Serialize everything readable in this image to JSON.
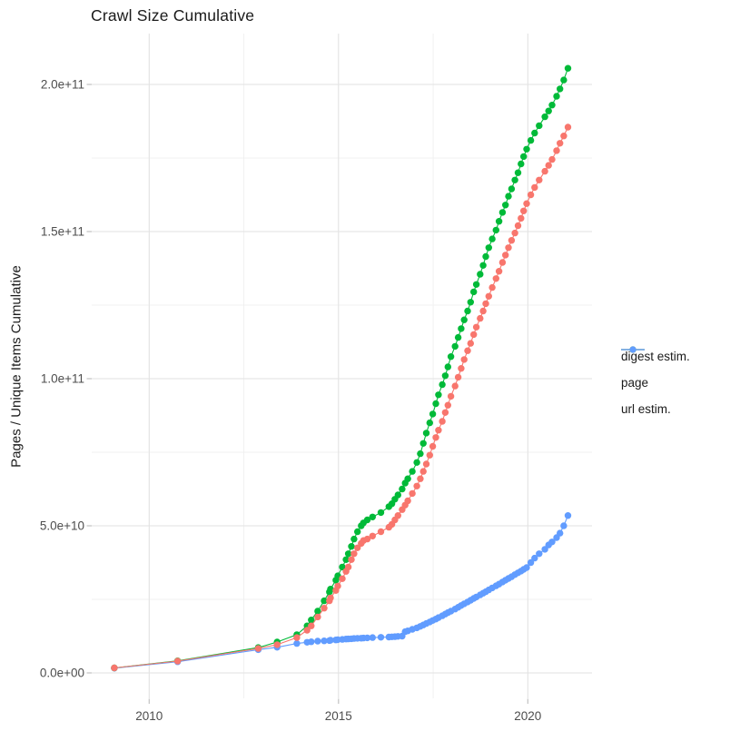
{
  "chart": {
    "title": "Crawl Size Cumulative",
    "ylabel": "Pages / Unique Items Cumulative"
  },
  "chart_data": {
    "type": "scatter",
    "title": "Crawl Size Cumulative",
    "xlabel": "",
    "ylabel": "Pages / Unique Items Cumulative",
    "x_unit": "year (decimal)",
    "y_unit": "count (billions, value * 1e9)",
    "grid": "on",
    "legend_position": "right-center",
    "background": "#ffffff",
    "grid_major_color": "#e2e2e2",
    "grid_minor_color": "#eeeeee",
    "tick_color": "#c2c2c2",
    "axis_text_color": "#4d4d4d",
    "xlim": [
      2008.55,
      2021.7
    ],
    "ylim_e9": [
      0,
      212
    ],
    "x_ticks": {
      "major": [
        2010,
        2015,
        2020
      ],
      "labels": [
        "2010",
        "2015",
        "2020"
      ],
      "minor": [
        2012.5,
        2017.5
      ]
    },
    "y_ticks": {
      "major_e9": [
        0,
        50,
        100,
        150,
        200
      ],
      "labels": [
        "0.0e+00",
        "5.0e+10",
        "1.0e+11",
        "1.5e+11",
        "2.0e+11"
      ],
      "minor_e9": [
        25,
        75,
        125,
        175
      ]
    },
    "x": [
      2009.08,
      2010.75,
      2012.88,
      2013.38,
      2013.9,
      2014.17,
      2014.28,
      2014.45,
      2014.62,
      2014.76,
      2014.79,
      2014.93,
      2014.98,
      2015.1,
      2015.2,
      2015.26,
      2015.34,
      2015.41,
      2015.5,
      2015.6,
      2015.66,
      2015.76,
      2015.9,
      2016.12,
      2016.33,
      2016.41,
      2016.49,
      2016.57,
      2016.68,
      2016.76,
      2016.83,
      2016.95,
      2017.07,
      2017.16,
      2017.24,
      2017.32,
      2017.41,
      2017.49,
      2017.57,
      2017.64,
      2017.74,
      2017.82,
      2017.89,
      2017.97,
      2018.08,
      2018.16,
      2018.24,
      2018.32,
      2018.41,
      2018.49,
      2018.57,
      2018.64,
      2018.74,
      2018.82,
      2018.89,
      2018.97,
      2019.06,
      2019.16,
      2019.24,
      2019.33,
      2019.41,
      2019.49,
      2019.57,
      2019.66,
      2019.74,
      2019.82,
      2019.89,
      2019.97,
      2020.08,
      2020.18,
      2020.3,
      2020.45,
      2020.55,
      2020.64,
      2020.76,
      2020.85,
      2020.95,
      2021.06
    ],
    "series": [
      {
        "name": "digest estim.",
        "color": "#F8766D",
        "values_e9": [
          1.7,
          4.0,
          8.3,
          9.6,
          12,
          14.5,
          16,
          19,
          22,
          24.5,
          25.5,
          28,
          29.5,
          32,
          34.5,
          36,
          38.5,
          40.5,
          42.5,
          44,
          45,
          45.5,
          46.5,
          48,
          49.5,
          50.5,
          52,
          53.5,
          55.5,
          57,
          58.5,
          61,
          63.5,
          66,
          68.5,
          71,
          74,
          77,
          80,
          82.5,
          85.5,
          88.5,
          91,
          94,
          97.5,
          100.5,
          103.5,
          106.5,
          109.5,
          112,
          115,
          117.5,
          120.5,
          123,
          125.5,
          128,
          131,
          134,
          136.5,
          139.5,
          142,
          144.5,
          147,
          149.5,
          152,
          154.5,
          157,
          159.5,
          162.5,
          165,
          167.5,
          170.5,
          172.5,
          174.5,
          177.5,
          180,
          182.5,
          185.5
        ]
      },
      {
        "name": "page",
        "color": "#00BA38",
        "values_e9": [
          1.7,
          4.1,
          8.6,
          10.5,
          13,
          16,
          18,
          21,
          24.5,
          27.5,
          28.5,
          31.5,
          33,
          36,
          38.5,
          40.5,
          43,
          45.5,
          48,
          50,
          51,
          52,
          53,
          54.5,
          56.5,
          57.5,
          59,
          60.5,
          62.5,
          64.5,
          66,
          68.5,
          71.5,
          74.5,
          78,
          81.5,
          85,
          88,
          91.5,
          94.5,
          98,
          101,
          104,
          107.5,
          111,
          114,
          117,
          120,
          123,
          126,
          129.5,
          132,
          135.5,
          138.5,
          141.5,
          144.5,
          147.5,
          150.5,
          153.5,
          156.5,
          159,
          162,
          164.5,
          167.5,
          170,
          173,
          175.5,
          178,
          181,
          183.5,
          186,
          189,
          191,
          193,
          196,
          198.5,
          201.5,
          205.5
        ]
      },
      {
        "name": "url estim.",
        "color": "#619CFF",
        "values_e9": [
          1.6,
          3.8,
          7.9,
          8.7,
          10,
          10.4,
          10.6,
          10.8,
          10.9,
          11,
          11.1,
          11.2,
          11.3,
          11.4,
          11.5,
          11.55,
          11.6,
          11.7,
          11.75,
          11.8,
          11.85,
          11.9,
          12,
          12.1,
          12.2,
          12.25,
          12.3,
          12.4,
          12.5,
          14,
          14.3,
          14.8,
          15.3,
          15.8,
          16.3,
          16.8,
          17.3,
          17.8,
          18.3,
          18.8,
          19.4,
          20,
          20.5,
          21,
          21.7,
          22.3,
          22.9,
          23.5,
          24.1,
          24.7,
          25.3,
          25.8,
          26.5,
          27.1,
          27.6,
          28.2,
          28.9,
          29.6,
          30.2,
          30.9,
          31.5,
          32.1,
          32.7,
          33.4,
          34,
          34.6,
          35.2,
          35.8,
          37.5,
          39,
          40.5,
          42,
          43.5,
          44.5,
          46,
          47.5,
          50,
          53.5
        ]
      }
    ]
  }
}
